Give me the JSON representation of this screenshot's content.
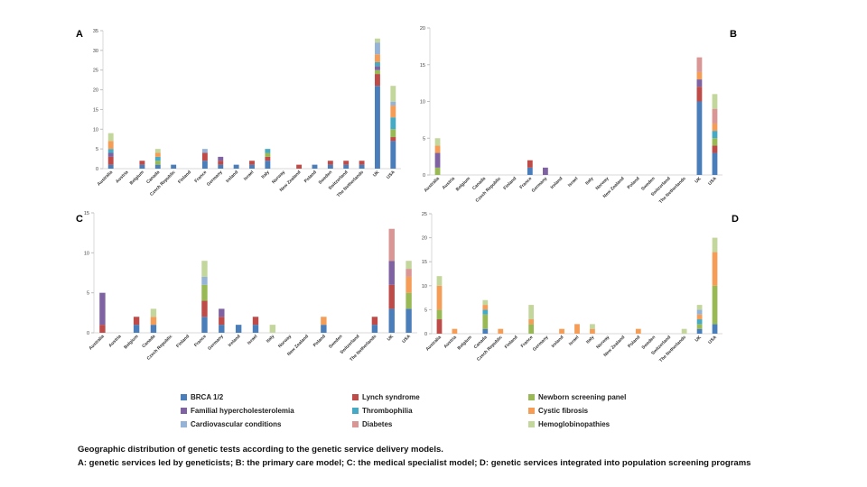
{
  "colors": {
    "BRCA 1/2": "#4a7ebb",
    "Lynch syndrome": "#be4b48",
    "Newborn screening panel": "#98b954",
    "Familial hypercholesterolemia": "#7e62a1",
    "Thrombophilia": "#46aac5",
    "Cystic fibrosis": "#f59d56",
    "Cardiovascular conditions": "#95b3d7",
    "Diabetes": "#d99694",
    "Hemoglobinopathies": "#c3d69b"
  },
  "legend": [
    "BRCA 1/2",
    "Lynch syndrome",
    "Newborn screening panel",
    "Familial hypercholesterolemia",
    "Thrombophilia",
    "Cystic fibrosis",
    "Cardiovascular conditions",
    "Diabetes",
    "Hemoglobinopathies"
  ],
  "caption": {
    "line1": "Geographic distribution of genetic tests according to the genetic service delivery models.",
    "line2": "A: genetic services led by geneticists; B: the primary care model; C: the medical specialist model; D: genetic services integrated into population screening programs"
  },
  "chart_data": [
    {
      "type": "bar",
      "panel_label": "A",
      "stacked": true,
      "categories": [
        "Australia",
        "Austria",
        "Belgium",
        "Canada",
        "Czech Republic",
        "Finland",
        "France",
        "Germany",
        "Ireland",
        "Israel",
        "Italy",
        "Norway",
        "New Zealand",
        "Poland",
        "Sweden",
        "Switzerland",
        "The Netherlands",
        "UK",
        "USA"
      ],
      "ylim": [
        0,
        35
      ],
      "yticks": [
        0,
        5,
        10,
        15,
        20,
        25,
        30,
        35
      ],
      "series": [
        {
          "name": "BRCA 1/2",
          "values": [
            1,
            0,
            1,
            1,
            1,
            0,
            2,
            1,
            1,
            1,
            2,
            0,
            0,
            1,
            1,
            1,
            1,
            21,
            7
          ]
        },
        {
          "name": "Lynch syndrome",
          "values": [
            2,
            0,
            1,
            0,
            0,
            0,
            2,
            1,
            0,
            1,
            1,
            0,
            1,
            0,
            1,
            1,
            1,
            3,
            1
          ]
        },
        {
          "name": "Newborn screening panel",
          "values": [
            0,
            0,
            0,
            1,
            0,
            0,
            0,
            0,
            0,
            0,
            1,
            0,
            0,
            0,
            0,
            0,
            0,
            1,
            2
          ]
        },
        {
          "name": "Familial hypercholesterolemia",
          "values": [
            1,
            0,
            0,
            0,
            0,
            0,
            0,
            1,
            0,
            0,
            0,
            0,
            0,
            0,
            0,
            0,
            0,
            1,
            0
          ]
        },
        {
          "name": "Thrombophilia",
          "values": [
            1,
            0,
            0,
            1,
            0,
            0,
            0,
            0,
            0,
            0,
            1,
            0,
            0,
            0,
            0,
            0,
            0,
            1,
            3
          ]
        },
        {
          "name": "Cystic fibrosis",
          "values": [
            2,
            0,
            0,
            1,
            0,
            0,
            0,
            0,
            0,
            0,
            0,
            0,
            0,
            0,
            0,
            0,
            0,
            2,
            3
          ]
        },
        {
          "name": "Cardiovascular conditions",
          "values": [
            0,
            0,
            0,
            0,
            0,
            0,
            1,
            0,
            0,
            0,
            0,
            0,
            0,
            0,
            0,
            0,
            0,
            3,
            1
          ]
        },
        {
          "name": "Diabetes",
          "values": [
            0,
            0,
            0,
            0,
            0,
            0,
            0,
            0,
            0,
            0,
            0,
            0,
            0,
            0,
            0,
            0,
            0,
            0,
            0
          ]
        },
        {
          "name": "Hemoglobinopathies",
          "values": [
            2,
            0,
            0,
            1,
            0,
            0,
            0,
            0,
            0,
            0,
            0,
            0,
            0,
            0,
            0,
            0,
            0,
            1,
            4
          ]
        }
      ]
    },
    {
      "type": "bar",
      "panel_label": "B",
      "stacked": true,
      "categories": [
        "Australia",
        "Austria",
        "Belgium",
        "Canada",
        "Czech Republic",
        "Finland",
        "France",
        "Germany",
        "Ireland",
        "Israel",
        "Italy",
        "Norway",
        "New Zealand",
        "Poland",
        "Sweden",
        "Switzerland",
        "The Netherlands",
        "UK",
        "USA"
      ],
      "ylim": [
        0,
        20
      ],
      "yticks": [
        0,
        5,
        10,
        15,
        20
      ],
      "series": [
        {
          "name": "BRCA 1/2",
          "values": [
            0,
            0,
            0,
            0,
            0,
            0,
            1,
            0,
            0,
            0,
            0,
            0,
            0,
            0,
            0,
            0,
            0,
            10,
            3
          ]
        },
        {
          "name": "Lynch syndrome",
          "values": [
            0,
            0,
            0,
            0,
            0,
            0,
            1,
            0,
            0,
            0,
            0,
            0,
            0,
            0,
            0,
            0,
            0,
            2,
            1
          ]
        },
        {
          "name": "Newborn screening panel",
          "values": [
            1,
            0,
            0,
            0,
            0,
            0,
            0,
            0,
            0,
            0,
            0,
            0,
            0,
            0,
            0,
            0,
            0,
            0,
            1
          ]
        },
        {
          "name": "Familial hypercholesterolemia",
          "values": [
            2,
            0,
            0,
            0,
            0,
            0,
            0,
            1,
            0,
            0,
            0,
            0,
            0,
            0,
            0,
            0,
            0,
            1,
            0
          ]
        },
        {
          "name": "Thrombophilia",
          "values": [
            0,
            0,
            0,
            0,
            0,
            0,
            0,
            0,
            0,
            0,
            0,
            0,
            0,
            0,
            0,
            0,
            0,
            0,
            1
          ]
        },
        {
          "name": "Cystic fibrosis",
          "values": [
            1,
            0,
            0,
            0,
            0,
            0,
            0,
            0,
            0,
            0,
            0,
            0,
            0,
            0,
            0,
            0,
            0,
            1,
            1
          ]
        },
        {
          "name": "Cardiovascular conditions",
          "values": [
            0,
            0,
            0,
            0,
            0,
            0,
            0,
            0,
            0,
            0,
            0,
            0,
            0,
            0,
            0,
            0,
            0,
            0,
            0
          ]
        },
        {
          "name": "Diabetes",
          "values": [
            0,
            0,
            0,
            0,
            0,
            0,
            0,
            0,
            0,
            0,
            0,
            0,
            0,
            0,
            0,
            0,
            0,
            2,
            2
          ]
        },
        {
          "name": "Hemoglobinopathies",
          "values": [
            1,
            0,
            0,
            0,
            0,
            0,
            0,
            0,
            0,
            0,
            0,
            0,
            0,
            0,
            0,
            0,
            0,
            0,
            2
          ]
        }
      ]
    },
    {
      "type": "bar",
      "panel_label": "C",
      "stacked": true,
      "categories": [
        "Australia",
        "Austria",
        "Belgium",
        "Canada",
        "Czech Republic",
        "Finland",
        "France",
        "Germany",
        "Ireland",
        "Israel",
        "Italy",
        "Norway",
        "New Zealand",
        "Poland",
        "Sweden",
        "Switzerland",
        "The Netherlands",
        "UK",
        "USA"
      ],
      "ylim": [
        0,
        15
      ],
      "yticks": [
        0,
        5,
        10,
        15
      ],
      "series": [
        {
          "name": "BRCA 1/2",
          "values": [
            0,
            0,
            1,
            1,
            0,
            0,
            2,
            1,
            1,
            1,
            0,
            0,
            0,
            1,
            0,
            0,
            1,
            3,
            3
          ]
        },
        {
          "name": "Lynch syndrome",
          "values": [
            1,
            0,
            1,
            0,
            0,
            0,
            2,
            1,
            0,
            1,
            0,
            0,
            0,
            0,
            0,
            0,
            1,
            3,
            0
          ]
        },
        {
          "name": "Newborn screening panel",
          "values": [
            0,
            0,
            0,
            0,
            0,
            0,
            2,
            0,
            0,
            0,
            0,
            0,
            0,
            0,
            0,
            0,
            0,
            0,
            2
          ]
        },
        {
          "name": "Familial hypercholesterolemia",
          "values": [
            4,
            0,
            0,
            0,
            0,
            0,
            0,
            1,
            0,
            0,
            0,
            0,
            0,
            0,
            0,
            0,
            0,
            3,
            0
          ]
        },
        {
          "name": "Thrombophilia",
          "values": [
            0,
            0,
            0,
            0,
            0,
            0,
            0,
            0,
            0,
            0,
            0,
            0,
            0,
            0,
            0,
            0,
            0,
            0,
            0
          ]
        },
        {
          "name": "Cystic fibrosis",
          "values": [
            0,
            0,
            0,
            1,
            0,
            0,
            0,
            0,
            0,
            0,
            0,
            0,
            0,
            1,
            0,
            0,
            0,
            0,
            2
          ]
        },
        {
          "name": "Cardiovascular conditions",
          "values": [
            0,
            0,
            0,
            0,
            0,
            0,
            1,
            0,
            0,
            0,
            0,
            0,
            0,
            0,
            0,
            0,
            0,
            0,
            0
          ]
        },
        {
          "name": "Diabetes",
          "values": [
            0,
            0,
            0,
            0,
            0,
            0,
            0,
            0,
            0,
            0,
            0,
            0,
            0,
            0,
            0,
            0,
            0,
            4,
            1
          ]
        },
        {
          "name": "Hemoglobinopathies",
          "values": [
            0,
            0,
            0,
            1,
            0,
            0,
            2,
            0,
            0,
            0,
            1,
            0,
            0,
            0,
            0,
            0,
            0,
            0,
            1
          ]
        }
      ]
    },
    {
      "type": "bar",
      "panel_label": "D",
      "stacked": true,
      "categories": [
        "Australia",
        "Austria",
        "Belgium",
        "Canada",
        "Czech Republic",
        "Finland",
        "France",
        "Germany",
        "Ireland",
        "Israel",
        "Italy",
        "Norway",
        "New Zealand",
        "Poland",
        "Sweden",
        "Switzerland",
        "The Netherlands",
        "UK",
        "USA"
      ],
      "ylim": [
        0,
        25
      ],
      "yticks": [
        0,
        5,
        10,
        15,
        20,
        25
      ],
      "series": [
        {
          "name": "BRCA 1/2",
          "values": [
            0,
            0,
            0,
            1,
            0,
            0,
            0,
            0,
            0,
            0,
            0,
            0,
            0,
            0,
            0,
            0,
            0,
            1,
            2
          ]
        },
        {
          "name": "Lynch syndrome",
          "values": [
            3,
            0,
            0,
            0,
            0,
            0,
            0,
            0,
            0,
            0,
            0,
            0,
            0,
            0,
            0,
            0,
            0,
            0,
            0
          ]
        },
        {
          "name": "Newborn screening panel",
          "values": [
            2,
            0,
            0,
            3,
            0,
            0,
            2,
            0,
            0,
            0,
            0,
            0,
            0,
            0,
            0,
            0,
            0,
            1,
            8
          ]
        },
        {
          "name": "Familial hypercholesterolemia",
          "values": [
            0,
            0,
            0,
            0,
            0,
            0,
            0,
            0,
            0,
            0,
            0,
            0,
            0,
            0,
            0,
            0,
            0,
            0,
            0
          ]
        },
        {
          "name": "Thrombophilia",
          "values": [
            0,
            0,
            0,
            1,
            0,
            0,
            0,
            0,
            0,
            0,
            0,
            0,
            0,
            0,
            0,
            0,
            0,
            1,
            0
          ]
        },
        {
          "name": "Cystic fibrosis",
          "values": [
            5,
            1,
            0,
            1,
            1,
            0,
            1,
            0,
            1,
            2,
            1,
            0,
            0,
            1,
            0,
            0,
            0,
            1,
            7
          ]
        },
        {
          "name": "Cardiovascular conditions",
          "values": [
            0,
            0,
            0,
            0,
            0,
            0,
            0,
            0,
            0,
            0,
            0,
            0,
            0,
            0,
            0,
            0,
            0,
            1,
            0
          ]
        },
        {
          "name": "Diabetes",
          "values": [
            0,
            0,
            0,
            0,
            0,
            0,
            0,
            0,
            0,
            0,
            0,
            0,
            0,
            0,
            0,
            0,
            0,
            0,
            0
          ]
        },
        {
          "name": "Hemoglobinopathies",
          "values": [
            2,
            0,
            0,
            1,
            0,
            0,
            3,
            0,
            0,
            0,
            1,
            0,
            0,
            0,
            0,
            0,
            1,
            1,
            3
          ]
        }
      ]
    }
  ]
}
